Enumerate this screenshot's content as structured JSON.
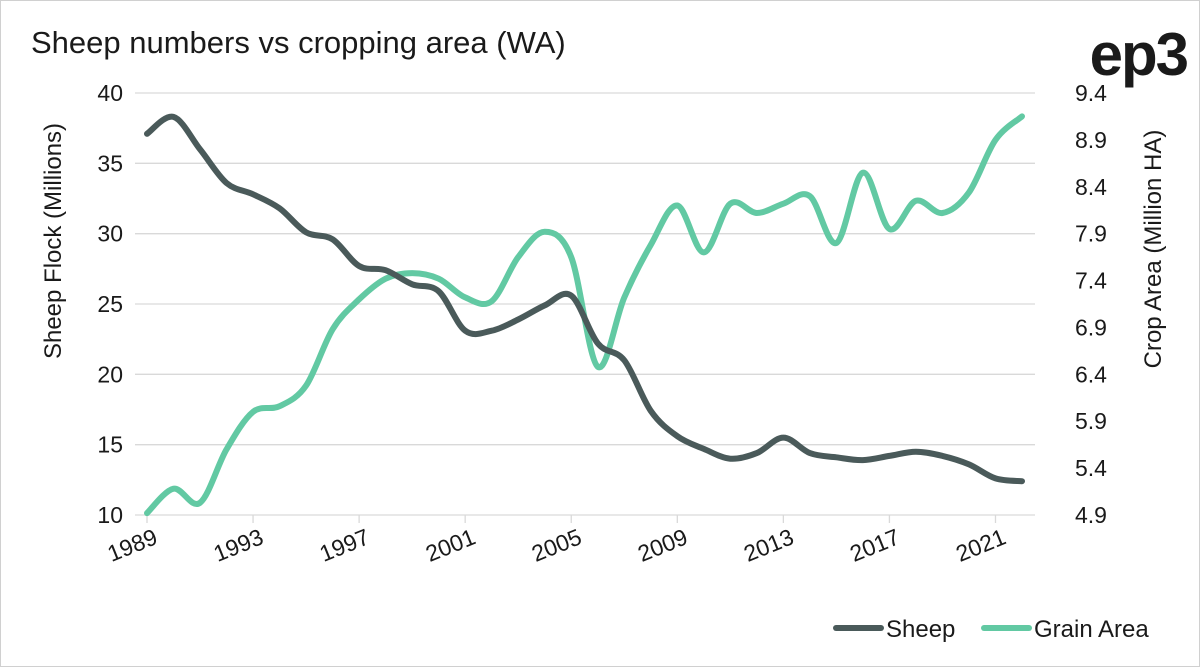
{
  "logo_text": "ep3",
  "chart_data": {
    "type": "line",
    "title": "Sheep numbers vs cropping area (WA)",
    "x": [
      1989,
      1990,
      1991,
      1992,
      1993,
      1994,
      1995,
      1996,
      1997,
      1998,
      1999,
      2000,
      2001,
      2002,
      2003,
      2004,
      2005,
      2006,
      2007,
      2008,
      2009,
      2010,
      2011,
      2012,
      2013,
      2014,
      2015,
      2016,
      2017,
      2018,
      2019,
      2020,
      2021,
      2022
    ],
    "x_ticks": [
      1989,
      1993,
      1997,
      2001,
      2005,
      2009,
      2013,
      2017,
      2021
    ],
    "xlim": [
      1989,
      2022
    ],
    "y_left": {
      "label": "Sheep Flock (Millions)",
      "lim": [
        10,
        40
      ],
      "ticks": [
        10,
        15,
        20,
        25,
        30,
        35,
        40
      ]
    },
    "y_right": {
      "label": "Crop Area (Million HA)",
      "lim": [
        4.9,
        9.4
      ],
      "ticks": [
        4.9,
        5.4,
        5.9,
        6.4,
        6.9,
        7.4,
        7.9,
        8.4,
        8.9,
        9.4
      ]
    },
    "grid": "horizontal",
    "legend_position": "bottom-right",
    "series": [
      {
        "name": "Sheep",
        "axis": "left",
        "color": "#4a5a5a",
        "values": [
          37.1,
          38.3,
          36.0,
          33.6,
          32.8,
          31.8,
          30.1,
          29.6,
          27.7,
          27.4,
          26.4,
          25.9,
          23.1,
          23.1,
          23.9,
          24.9,
          25.6,
          22.2,
          21.0,
          17.4,
          15.6,
          14.7,
          14.0,
          14.4,
          15.5,
          14.4,
          14.1,
          13.9,
          14.2,
          14.5,
          14.2,
          13.6,
          12.6,
          12.4
        ]
      },
      {
        "name": "Grain Area",
        "axis": "right",
        "color": "#62c9a3",
        "values": [
          4.92,
          5.18,
          5.03,
          5.6,
          6.0,
          6.06,
          6.28,
          6.88,
          7.2,
          7.42,
          7.48,
          7.42,
          7.22,
          7.18,
          7.65,
          7.92,
          7.65,
          6.48,
          7.22,
          7.78,
          8.2,
          7.7,
          8.22,
          8.12,
          8.22,
          8.3,
          7.8,
          8.55,
          7.95,
          8.25,
          8.12,
          8.34,
          8.9,
          9.15
        ]
      }
    ]
  }
}
